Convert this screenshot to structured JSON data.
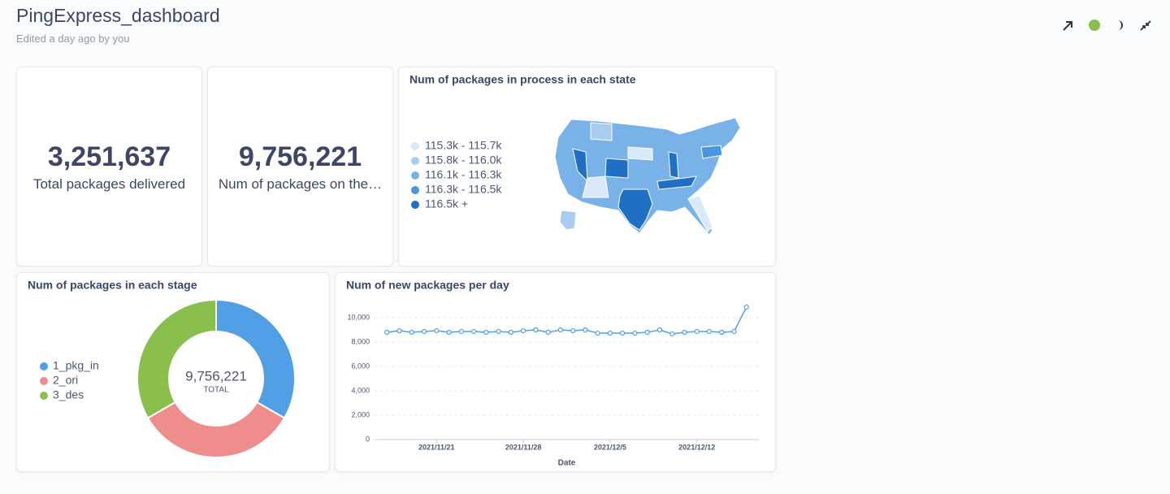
{
  "header": {
    "title": "PingExpress_dashboard",
    "subtitle": "Edited a day ago by you"
  },
  "scalar_cards": [
    {
      "value": "3,251,637",
      "label": "Total packages delivered"
    },
    {
      "value": "9,756,221",
      "label": "Num of packages on the…"
    }
  ],
  "map_card": {
    "title": "Num of packages in process in each state",
    "legend": [
      {
        "label": "115.3k - 115.7k",
        "color": "#d9e9f9"
      },
      {
        "label": "115.8k - 116.0k",
        "color": "#a8cdf1"
      },
      {
        "label": "116.1k - 116.3k",
        "color": "#78b2e9"
      },
      {
        "label": "116.3k - 116.5k",
        "color": "#4896df"
      },
      {
        "label": "116.5k +",
        "color": "#1f6fc5"
      }
    ]
  },
  "chart_data": [
    {
      "type": "pie",
      "title": "Num of packages in each stage",
      "categories": [
        "1_pkg_in",
        "2_ori",
        "3_des"
      ],
      "values": [
        3252000,
        3252584,
        3251637
      ],
      "colors": [
        "#509ee3",
        "#ef8c8c",
        "#88bf4d"
      ],
      "total": {
        "value": 9756221,
        "label": "9,756,221"
      },
      "total_caption": "TOTAL"
    },
    {
      "type": "line",
      "title": "Num of new packages per day",
      "x_label": "Date",
      "color": "#509ee3",
      "x": [
        "2021/11/17",
        "2021/11/18",
        "2021/11/19",
        "2021/11/20",
        "2021/11/21",
        "2021/11/22",
        "2021/11/23",
        "2021/11/24",
        "2021/11/25",
        "2021/11/26",
        "2021/11/27",
        "2021/11/28",
        "2021/11/29",
        "2021/11/30",
        "2021/12/1",
        "2021/12/2",
        "2021/12/3",
        "2021/12/4",
        "2021/12/5",
        "2021/12/6",
        "2021/12/7",
        "2021/12/8",
        "2021/12/9",
        "2021/12/10",
        "2021/12/11",
        "2021/12/12",
        "2021/12/13",
        "2021/12/14",
        "2021/12/15",
        "2021/12/16"
      ],
      "values": [
        8800,
        8930,
        8800,
        8870,
        8930,
        8800,
        8870,
        8870,
        8800,
        8870,
        8800,
        8930,
        9000,
        8800,
        9000,
        8930,
        9000,
        8730,
        8730,
        8730,
        8730,
        8800,
        9000,
        8670,
        8800,
        8870,
        8870,
        8800,
        8870,
        10870
      ],
      "xlim": [
        "2021/11/16",
        "2021/12/17"
      ],
      "xticks": [
        "2021/11/21",
        "2021/11/28",
        "2021/12/5",
        "2021/12/12"
      ],
      "ylim": [
        0,
        11000
      ],
      "yticks": [
        0,
        {
          "value": 2000,
          "label": "2,000"
        },
        {
          "value": 4000,
          "label": "4,000"
        },
        {
          "value": 6000,
          "label": "6,000"
        },
        {
          "value": 8000,
          "label": "8,000"
        },
        {
          "value": 10000,
          "label": "10,000"
        }
      ],
      "grid": true
    }
  ]
}
